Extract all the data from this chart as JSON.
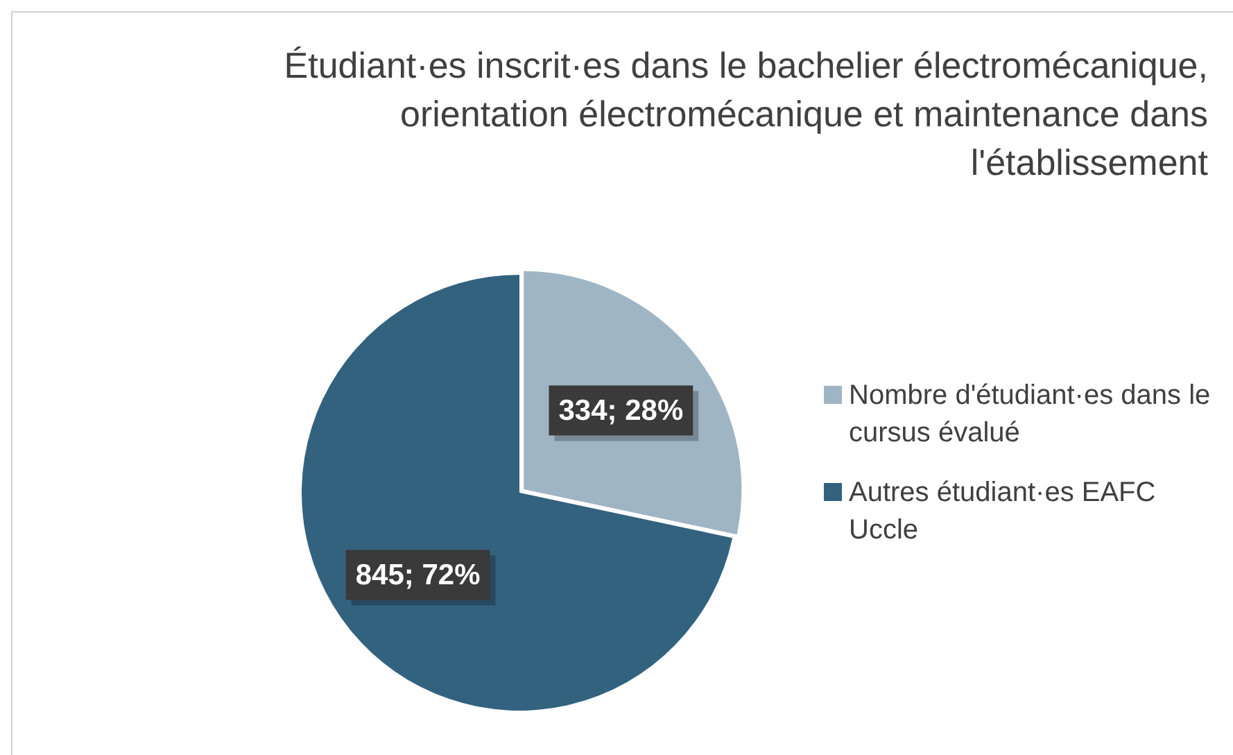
{
  "chart_data": {
    "type": "pie",
    "title": "Étudiant·es inscrit·es dans le bachelier électromécanique, orientation électromécanique et maintenance dans l'établissement",
    "categories": [
      "Nombre d'étudiant·es dans le cursus évalué",
      "Autres étudiant·es EAFC Uccle"
    ],
    "values": [
      334,
      845
    ],
    "colors": [
      "#9fb5c4",
      "#33627f"
    ],
    "value_labels": [
      "334; 28%",
      "845; 72%"
    ],
    "legend": "right"
  }
}
